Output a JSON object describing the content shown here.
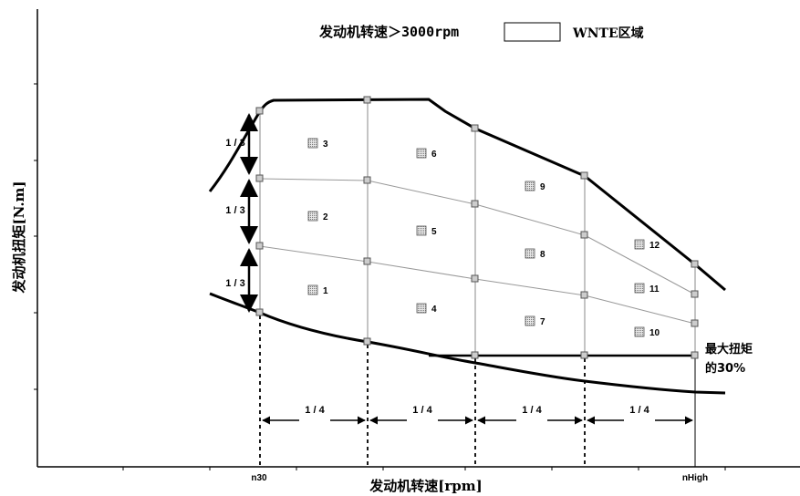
{
  "legend": {
    "condition": "发动机转速＞3000rpm",
    "zone_label": "WNTE区域"
  },
  "axes": {
    "ylabel": "发动机扭矩[N.m]",
    "xlabel": "发动机转速[rpm]",
    "x_ticks": [
      "n30",
      "nHigh"
    ]
  },
  "annotation": {
    "line1": "最大扭矩",
    "line2": "的30%"
  },
  "fractions": {
    "vertical": [
      "1 / 3",
      "1 / 3",
      "1 / 3"
    ],
    "horizontal": [
      "1 / 4",
      "1 / 4",
      "1 / 4",
      "1 / 4"
    ]
  },
  "cells": [
    "1",
    "2",
    "3",
    "4",
    "5",
    "6",
    "7",
    "8",
    "9",
    "10",
    "11",
    "12"
  ]
}
